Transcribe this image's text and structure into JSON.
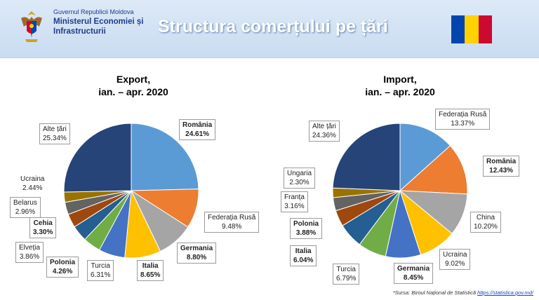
{
  "header": {
    "ministry_line0": "Guvernul Republicii Moldova",
    "ministry_line1": "Ministerul Economiei și",
    "ministry_line2": "Infrastructurii",
    "title": "Structura comerțului pe țări"
  },
  "colors": {
    "flag": [
      "#0046ae",
      "#ffd200",
      "#cc092f"
    ]
  },
  "source": {
    "prefix": "*Sursa: Biroul Național de Statistică",
    "link": "https://statistica.gov.md/"
  },
  "chart_data": [
    {
      "type": "pie",
      "title_line1": "Export,",
      "title_line2": "ian. – apr. 2020",
      "slices": [
        {
          "label": "România",
          "value": "24.61%",
          "pct": 24.61,
          "color": "#5b9bd5"
        },
        {
          "label": "Federația Rusă",
          "value": "9.48%",
          "pct": 9.48,
          "color": "#ed7d31"
        },
        {
          "label": "Germania",
          "value": "8.80%",
          "pct": 8.8,
          "color": "#a5a5a5"
        },
        {
          "label": "Italia",
          "value": "8.65%",
          "pct": 8.65,
          "color": "#ffc000"
        },
        {
          "label": "Turcia",
          "value": "6.31%",
          "pct": 6.31,
          "color": "#4472c4"
        },
        {
          "label": "Polonia",
          "value": "4.26%",
          "pct": 4.26,
          "color": "#70ad47"
        },
        {
          "label": "Elveția",
          "value": "3.86%",
          "pct": 3.86,
          "color": "#255e91"
        },
        {
          "label": "Cehia",
          "value": "3.30%",
          "pct": 3.3,
          "color": "#9e480e"
        },
        {
          "label": "Belarus",
          "value": "2.96%",
          "pct": 2.96,
          "color": "#636363"
        },
        {
          "label": "Ucraina",
          "value": "2.44%",
          "pct": 2.44,
          "color": "#997300"
        },
        {
          "label": "Alte țări",
          "value": "25.34%",
          "pct": 25.34,
          "color": "#264478"
        }
      ]
    },
    {
      "type": "pie",
      "title_line1": "Import,",
      "title_line2": "ian. – apr. 2020",
      "slices": [
        {
          "label": "Federația Rusă",
          "value": "13.37%",
          "pct": 13.37,
          "color": "#5b9bd5"
        },
        {
          "label": "România",
          "value": "12.43%",
          "pct": 12.43,
          "color": "#ed7d31"
        },
        {
          "label": "China",
          "value": "10.20%",
          "pct": 10.2,
          "color": "#a5a5a5"
        },
        {
          "label": "Ucraina",
          "value": "9.02%",
          "pct": 9.02,
          "color": "#ffc000"
        },
        {
          "label": "Germania",
          "value": "8.45%",
          "pct": 8.45,
          "color": "#4472c4"
        },
        {
          "label": "Turcia",
          "value": "6.79%",
          "pct": 6.79,
          "color": "#70ad47"
        },
        {
          "label": "Italia",
          "value": "6.04%",
          "pct": 6.04,
          "color": "#255e91"
        },
        {
          "label": "Polonia",
          "value": "3.88%",
          "pct": 3.88,
          "color": "#9e480e"
        },
        {
          "label": "Franța",
          "value": "3.16%",
          "pct": 3.16,
          "color": "#636363"
        },
        {
          "label": "Ungaria",
          "value": "2.30%",
          "pct": 2.3,
          "color": "#997300"
        },
        {
          "label": "Alte țări",
          "value": "24.36%",
          "pct": 24.36,
          "color": "#264478"
        }
      ]
    }
  ]
}
